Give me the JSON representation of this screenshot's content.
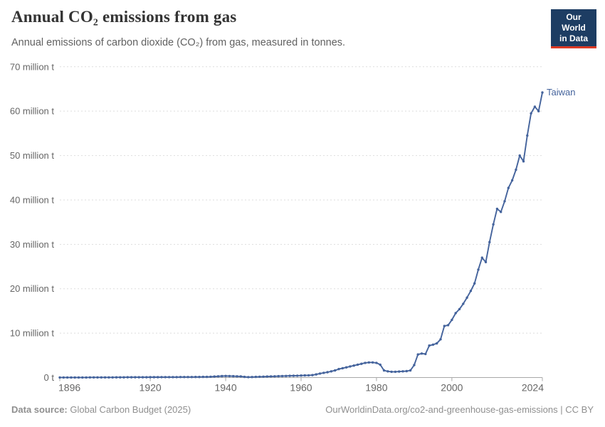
{
  "header": {
    "title": "Annual CO₂ emissions from gas",
    "subtitle": "Annual emissions of carbon dioxide (CO₂) from gas, measured in tonnes.",
    "logo": {
      "line1": "Our World",
      "line2": "in Data",
      "bg_color": "#1d3d63",
      "accent_color": "#dc3a25"
    }
  },
  "chart_data": {
    "type": "line",
    "title": "Annual CO₂ emissions from gas",
    "ylabel": "",
    "xlabel": "",
    "unit": "tonnes",
    "grid": "dashed-horizontal",
    "legend_position": "end-of-line-label",
    "x_range": [
      1896,
      2024
    ],
    "y_range_million_t": [
      0,
      70
    ],
    "xticks": [
      1896,
      1920,
      1940,
      1960,
      1980,
      2000,
      2024
    ],
    "yticks": [
      {
        "value": 0,
        "label": "0 t"
      },
      {
        "value": 10,
        "label": "10 million t"
      },
      {
        "value": 20,
        "label": "20 million t"
      },
      {
        "value": 30,
        "label": "30 million t"
      },
      {
        "value": 40,
        "label": "40 million t"
      },
      {
        "value": 50,
        "label": "50 million t"
      },
      {
        "value": 60,
        "label": "60 million t"
      },
      {
        "value": 70,
        "label": "70 million t"
      }
    ],
    "line_color": "#44639c",
    "gridline_color": "#dddddd",
    "axis_color": "#a8a8a8",
    "tick_label_color": "#666666",
    "series": [
      {
        "name": "Taiwan",
        "end_label": "Taiwan",
        "x_start_year": 1896,
        "x_step_years": 1,
        "values_million_t": [
          0.01,
          0.01,
          0.01,
          0.01,
          0.02,
          0.02,
          0.02,
          0.02,
          0.03,
          0.03,
          0.03,
          0.03,
          0.04,
          0.04,
          0.04,
          0.05,
          0.05,
          0.05,
          0.06,
          0.06,
          0.06,
          0.07,
          0.07,
          0.07,
          0.08,
          0.08,
          0.08,
          0.09,
          0.09,
          0.1,
          0.1,
          0.1,
          0.11,
          0.11,
          0.12,
          0.12,
          0.13,
          0.13,
          0.14,
          0.15,
          0.18,
          0.22,
          0.28,
          0.32,
          0.35,
          0.33,
          0.3,
          0.28,
          0.25,
          0.15,
          0.1,
          0.12,
          0.15,
          0.18,
          0.2,
          0.22,
          0.25,
          0.28,
          0.3,
          0.33,
          0.35,
          0.38,
          0.4,
          0.42,
          0.45,
          0.48,
          0.5,
          0.55,
          0.7,
          0.9,
          1.05,
          1.2,
          1.4,
          1.6,
          1.9,
          2.1,
          2.3,
          2.5,
          2.7,
          2.9,
          3.1,
          3.3,
          3.4,
          3.4,
          3.3,
          2.9,
          1.6,
          1.4,
          1.3,
          1.3,
          1.35,
          1.4,
          1.45,
          1.6,
          2.8,
          5.2,
          5.4,
          5.3,
          7.2,
          7.4,
          7.7,
          8.6,
          11.6,
          11.8,
          13.0,
          14.5,
          15.4,
          16.6,
          18.0,
          19.5,
          21.2,
          24.3,
          27.0,
          26.0,
          30.5,
          34.5,
          38.0,
          37.3,
          39.7,
          42.7,
          44.4,
          46.8,
          50.0,
          48.7,
          54.5,
          59.5,
          61.0,
          60.0,
          64.2
        ]
      }
    ]
  },
  "footer": {
    "datasource_label": "Data source:",
    "datasource_value": " Global Carbon Budget (2025)",
    "link_text": "OurWorldinData.org/co2-and-greenhouse-gas-emissions",
    "license_text": " | CC BY"
  }
}
